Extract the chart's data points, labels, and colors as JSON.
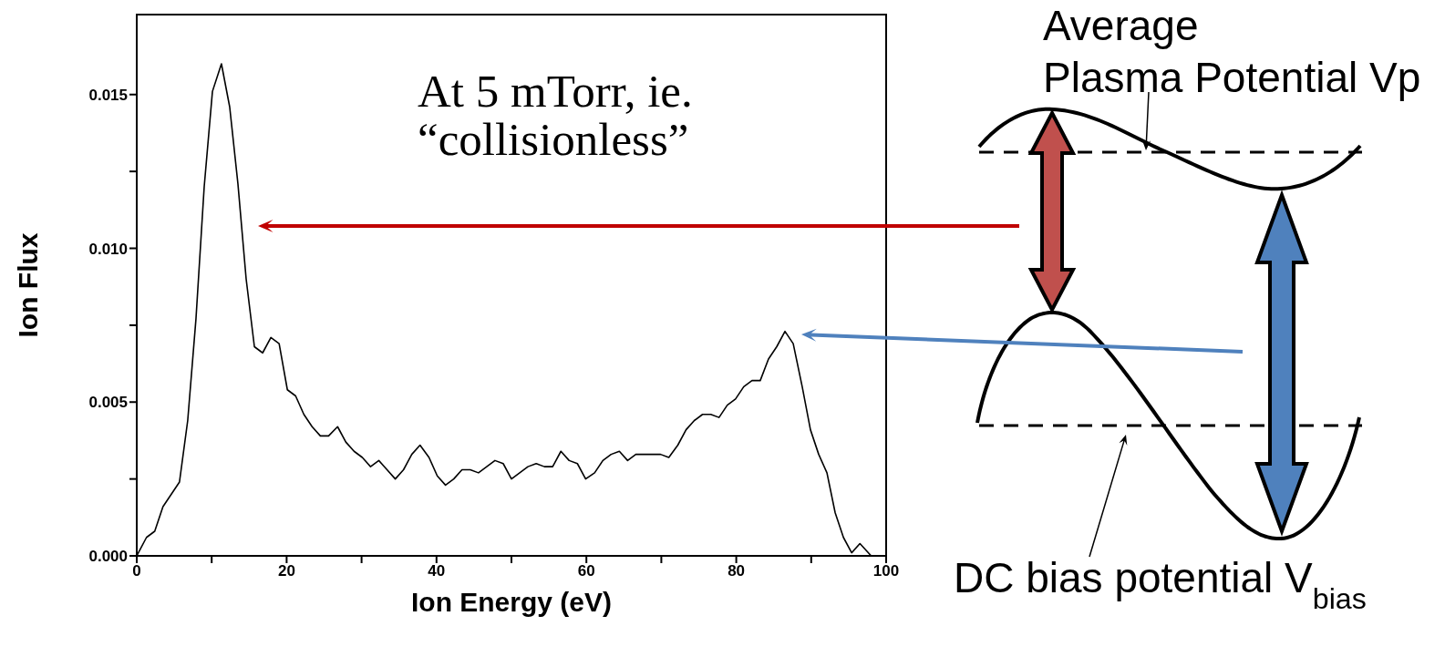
{
  "chart_data": {
    "type": "line",
    "xlabel": "Ion Energy (eV)",
    "ylabel": "Ion Flux",
    "annotations": [
      "At 5 mTorr, ie.\n“collisionless”",
      "Average\nPlasma Potential Vp",
      "DC bias potential V$_{bias}$"
    ],
    "x": [
      0,
      1.3,
      2.4,
      3.5,
      4.6,
      5.7,
      6.8,
      7.9,
      9.0,
      10.1,
      11.3,
      12.4,
      13.5,
      14.6,
      15.7,
      16.8,
      17.9,
      19.0,
      20.1,
      21.2,
      22.3,
      23.4,
      24.5,
      25.6,
      26.8,
      27.9,
      29.0,
      30.1,
      31.2,
      32.3,
      33.4,
      34.5,
      35.6,
      36.7,
      37.8,
      39.0,
      40.1,
      41.2,
      42.3,
      43.4,
      44.5,
      45.6,
      46.7,
      47.8,
      48.9,
      50.0,
      51.1,
      52.2,
      53.3,
      54.4,
      55.5,
      56.6,
      57.7,
      58.8,
      59.9,
      61.1,
      62.2,
      63.3,
      64.4,
      65.5,
      66.6,
      67.7,
      68.8,
      69.9,
      71.0,
      72.2,
      73.3,
      74.4,
      75.5,
      76.6,
      77.7,
      78.8,
      79.9,
      81.0,
      82.1,
      83.2,
      84.3,
      85.4,
      86.5,
      87.6,
      88.8,
      89.9,
      91.0,
      92.1,
      93.2,
      94.3,
      95.4,
      96.5,
      98.0
    ],
    "series": [
      {
        "color": "#000000",
        "values": [
          0,
          0.0006,
          0.0008,
          0.0016,
          0.002,
          0.0024,
          0.0044,
          0.0077,
          0.012,
          0.0151,
          0.016,
          0.0146,
          0.0121,
          0.009,
          0.0068,
          0.0066,
          0.0071,
          0.0069,
          0.0054,
          0.0052,
          0.0046,
          0.0042,
          0.0039,
          0.0039,
          0.0042,
          0.0037,
          0.0034,
          0.0032,
          0.0029,
          0.0031,
          0.0028,
          0.0025,
          0.0028,
          0.0033,
          0.0036,
          0.0032,
          0.0026,
          0.0023,
          0.0025,
          0.0028,
          0.0028,
          0.0027,
          0.0029,
          0.0031,
          0.003,
          0.0025,
          0.0027,
          0.0029,
          0.003,
          0.0029,
          0.0029,
          0.0034,
          0.0031,
          0.003,
          0.0025,
          0.0027,
          0.0031,
          0.0033,
          0.0034,
          0.0031,
          0.0033,
          0.0033,
          0.0033,
          0.0033,
          0.0032,
          0.0036,
          0.0041,
          0.0044,
          0.0046,
          0.0046,
          0.0045,
          0.0049,
          0.0051,
          0.0055,
          0.0057,
          0.0057,
          0.0064,
          0.0068,
          0.0073,
          0.0069,
          0.0055,
          0.0041,
          0.0033,
          0.0027,
          0.0014,
          0.0006,
          0.0001,
          0.0004,
          0
        ]
      }
    ],
    "xlim": [
      0,
      100
    ],
    "xticks": [
      0,
      {
        "value": 10,
        "label": null
      },
      20,
      {
        "value": 30,
        "label": null
      },
      40,
      {
        "value": 50,
        "label": null
      },
      60,
      {
        "value": 70,
        "label": null
      },
      80,
      {
        "value": 90,
        "label": null
      },
      100
    ],
    "ylim": [
      0,
      0.0176
    ],
    "yticks": [
      {
        "value": 0,
        "label": "0.000"
      },
      {
        "value": 0.0025,
        "label": null
      },
      {
        "value": 0.005,
        "label": "0.005"
      },
      {
        "value": 0.0075,
        "label": null
      },
      {
        "value": 0.01,
        "label": "0.010"
      },
      {
        "value": 0.0125,
        "label": null
      },
      {
        "value": 0.015,
        "label": "0.015"
      }
    ],
    "marker": "none",
    "line_style": "solid"
  }
}
